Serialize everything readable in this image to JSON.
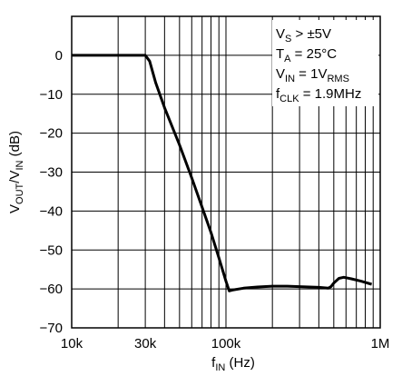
{
  "chart_data": {
    "type": "line",
    "x_scale": "log",
    "grid": true,
    "xlim": [
      10000,
      1000000
    ],
    "ylim": [
      -70,
      10
    ],
    "x_ticks": [
      {
        "value": 10000,
        "label": "10k"
      },
      {
        "value": 30000,
        "label": "30k"
      },
      {
        "value": 100000,
        "label": "100k"
      },
      {
        "value": 1000000,
        "label": "1M"
      }
    ],
    "y_ticks": [
      {
        "value": 0,
        "label": "0"
      },
      {
        "value": -10,
        "label": "−10"
      },
      {
        "value": -20,
        "label": "−20"
      },
      {
        "value": -30,
        "label": "−30"
      },
      {
        "value": -40,
        "label": "−40"
      },
      {
        "value": -50,
        "label": "−50"
      },
      {
        "value": -60,
        "label": "−60"
      },
      {
        "value": -70,
        "label": "−70"
      }
    ],
    "xlabel": {
      "main": "f",
      "sub": "IN",
      "rest": " (Hz)"
    },
    "ylabel": {
      "a": "V",
      "a_sub": "OUT",
      "b": "/V",
      "b_sub": "IN",
      "rest": " (dB)"
    },
    "annotations": [
      {
        "main": "V",
        "sub": "S",
        "rest": " > ±5V"
      },
      {
        "main": "T",
        "sub": "A",
        "rest": " = 25°C"
      },
      {
        "main": "V",
        "sub": "IN",
        "rest": " = 1V",
        "sub2": "RMS"
      },
      {
        "main": "f",
        "sub": "CLK",
        "rest": " = 1.9MHz"
      }
    ],
    "series": [
      {
        "x": [
          10000,
          20000,
          30000,
          32000,
          35000,
          40000,
          50000,
          60000,
          70000,
          80000,
          90000,
          100000,
          105000,
          110000,
          130000,
          160000,
          200000,
          250000,
          300000,
          400000,
          460000,
          480000,
          500000,
          540000,
          580000,
          650000,
          750000,
          880000
        ],
        "y": [
          0,
          0,
          0,
          -1.5,
          -7,
          -13.5,
          -23,
          -31.5,
          -39,
          -45.5,
          -52,
          -58,
          -60.5,
          -60.3,
          -59.8,
          -59.5,
          -59.3,
          -59.3,
          -59.4,
          -59.6,
          -59.8,
          -59.4,
          -58.5,
          -57.3,
          -57,
          -57.4,
          -58,
          -58.8
        ]
      }
    ]
  }
}
